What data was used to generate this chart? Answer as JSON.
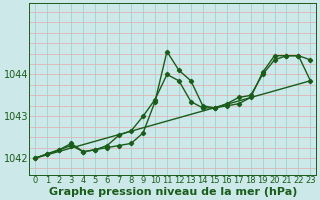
{
  "xlabel": "Graphe pression niveau de la mer (hPa)",
  "bg_color": "#cce8e8",
  "grid_color_h": "#e8aaaa",
  "grid_color_v": "#99cccc",
  "line_color": "#1a5c1a",
  "xlim": [
    -0.5,
    23.5
  ],
  "ylim": [
    1041.6,
    1045.7
  ],
  "yticks": [
    1042,
    1043,
    1044
  ],
  "xticks": [
    0,
    1,
    2,
    3,
    4,
    5,
    6,
    7,
    8,
    9,
    10,
    11,
    12,
    13,
    14,
    15,
    16,
    17,
    18,
    19,
    20,
    21,
    22,
    23
  ],
  "line1_x": [
    0,
    1,
    2,
    3,
    4,
    5,
    6,
    7,
    8,
    9,
    10,
    11,
    12,
    13,
    14,
    15,
    16,
    17,
    18,
    19,
    20,
    21,
    22,
    23
  ],
  "line1_y": [
    1042.0,
    1042.1,
    1042.2,
    1042.3,
    1042.15,
    1042.2,
    1042.25,
    1042.3,
    1042.35,
    1042.6,
    1043.35,
    1044.55,
    1044.1,
    1043.85,
    1043.25,
    1043.2,
    1043.25,
    1043.3,
    1043.45,
    1044.05,
    1044.45,
    1044.45,
    1044.45,
    1043.85
  ],
  "line2_x": [
    0,
    1,
    2,
    3,
    4,
    5,
    6,
    7,
    8,
    9,
    10,
    11,
    12,
    13,
    14,
    15,
    16,
    17,
    18,
    19,
    20,
    21,
    22,
    23
  ],
  "line2_y": [
    1042.0,
    1042.1,
    1042.2,
    1042.35,
    1042.15,
    1042.2,
    1042.3,
    1042.55,
    1042.65,
    1043.0,
    1043.4,
    1044.0,
    1043.85,
    1043.35,
    1043.2,
    1043.2,
    1043.3,
    1043.45,
    1043.5,
    1044.0,
    1044.35,
    1044.45,
    1044.45,
    1044.35
  ],
  "line3_x": [
    0,
    23
  ],
  "line3_y": [
    1042.0,
    1043.85
  ],
  "marker_style": "D",
  "marker_size": 2.2,
  "line_width": 1.0,
  "xlabel_fontsize": 8,
  "tick_fontsize": 7,
  "tick_color": "#1a5c1a"
}
